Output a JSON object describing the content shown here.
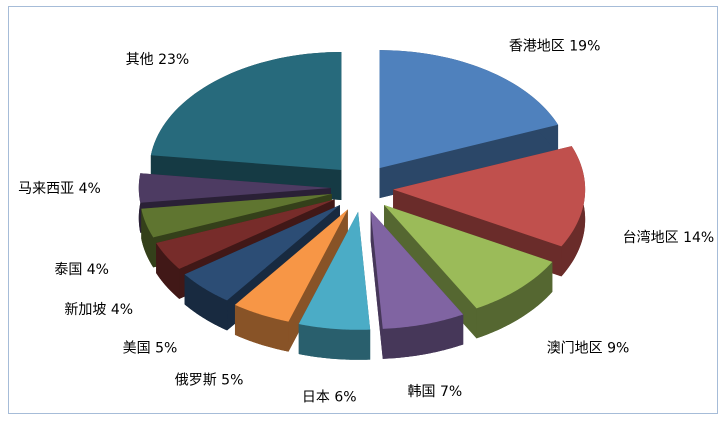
{
  "chart_data": {
    "type": "pie",
    "style": "3d-exploded",
    "categories": [
      "香港地区",
      "台湾地区",
      "澳门地区",
      "韩国",
      "日本",
      "俄罗斯",
      "美国",
      "新加坡",
      "泰国",
      "马来西亚",
      "其他"
    ],
    "values": [
      19,
      14,
      9,
      7,
      6,
      5,
      5,
      4,
      4,
      4,
      23
    ],
    "unit": "%",
    "colors": [
      "#4f81bd",
      "#c0504d",
      "#9bbb59",
      "#8064a2",
      "#4bacc6",
      "#f79646",
      "#2c4d75",
      "#772c2a",
      "#5f7530",
      "#4d3b62",
      "#276a7c"
    ],
    "legend": "none",
    "data_labels": "category and percent, outside"
  }
}
